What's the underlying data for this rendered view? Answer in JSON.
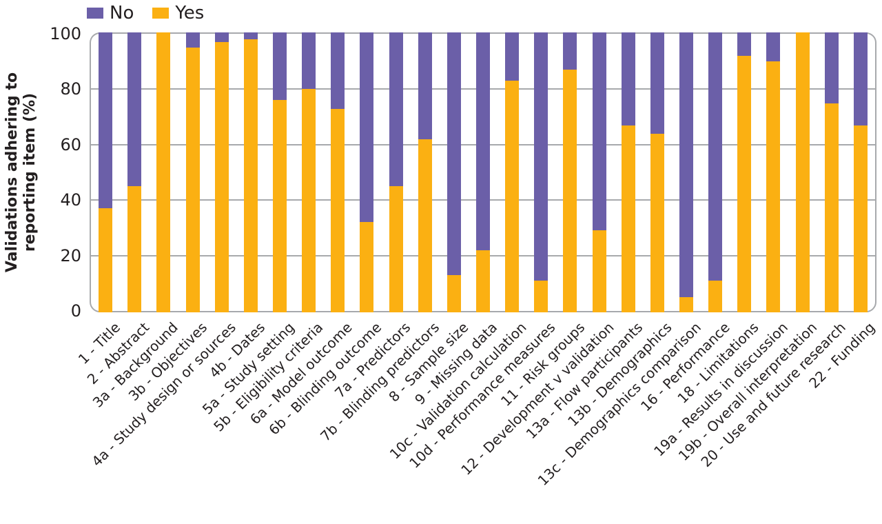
{
  "chart_data": {
    "type": "bar",
    "stacked": true,
    "orientation": "vertical",
    "title": "",
    "xlabel": "",
    "ylabel": "Validations adhering to reporting item (%)",
    "ylabel_line1": "Validations adhering to",
    "ylabel_line2": "reporting item (%)",
    "ylim": [
      0,
      100
    ],
    "y_ticks": [
      0,
      20,
      40,
      60,
      80,
      100
    ],
    "grid": "horizontal",
    "legend_position": "top-left",
    "categories": [
      "1 - Title",
      "2 - Abstract",
      "3a - Background",
      "3b - Objectives",
      "4a - Study design or sources",
      "4b - Dates",
      "5a - Study setting",
      "5b - Eligibility criteria",
      "6a - Model outcome",
      "6b - Blinding outcome",
      "7a - Predictors",
      "7b - Blinding predictors",
      "8 - Sample size",
      "9 - Missing data",
      "10c - Validation calculation",
      "10d - Performance measures",
      "11 - Risk groups",
      "12 - Development v validation",
      "13a - Flow participants",
      "13b - Demographics",
      "13c - Demographics comparison",
      "16 - Performance",
      "18 - Limitations",
      "19a - Results in discussion",
      "19b - Overall interpretation",
      "20 - Use and future research",
      "22 - Funding"
    ],
    "series": [
      {
        "name": "No",
        "color": "#6b5fa8",
        "values": [
          63,
          55,
          0,
          5,
          3,
          2,
          24,
          20,
          27,
          68,
          55,
          38,
          87,
          78,
          17,
          89,
          13,
          71,
          33,
          36,
          95,
          89,
          8,
          10,
          0,
          25,
          33
        ]
      },
      {
        "name": "Yes",
        "color": "#fbb012",
        "values": [
          37,
          45,
          100,
          95,
          97,
          98,
          76,
          80,
          73,
          32,
          45,
          62,
          13,
          22,
          83,
          11,
          87,
          29,
          67,
          64,
          5,
          11,
          92,
          90,
          100,
          75,
          67
        ]
      }
    ]
  },
  "colors": {
    "frame_and_grid": "#a7a9ac",
    "text": "#231f20",
    "background": "#ffffff"
  }
}
